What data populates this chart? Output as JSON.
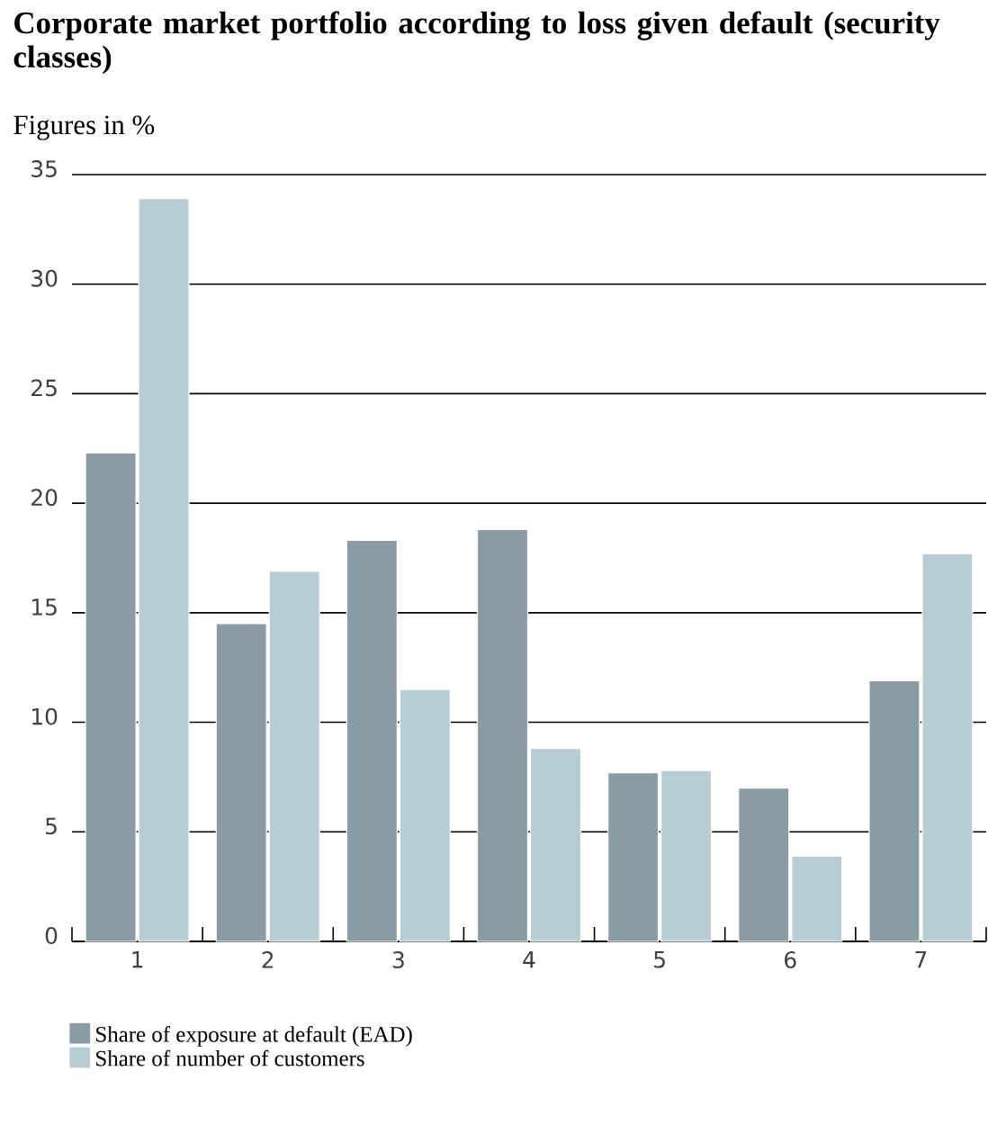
{
  "chart_data": {
    "type": "bar",
    "title": "Corporate market portfolio according to loss given default (security classes)",
    "subtitle": "Figures in %",
    "categories": [
      "1",
      "2",
      "3",
      "4",
      "5",
      "6",
      "7"
    ],
    "series": [
      {
        "name": "Share of exposure at default (EAD)",
        "color": "#8a9ba6",
        "values": [
          22.3,
          14.5,
          18.3,
          18.8,
          7.7,
          7.0,
          11.9
        ]
      },
      {
        "name": "Share of number of customers",
        "color": "#b8cdd3",
        "values": [
          33.9,
          16.9,
          11.5,
          8.8,
          7.8,
          3.9,
          17.7
        ]
      }
    ],
    "ylim": [
      0,
      35
    ],
    "yticks": [
      0,
      5,
      10,
      15,
      20,
      25,
      30,
      35
    ],
    "grid": "y",
    "legend": "bottom left"
  }
}
